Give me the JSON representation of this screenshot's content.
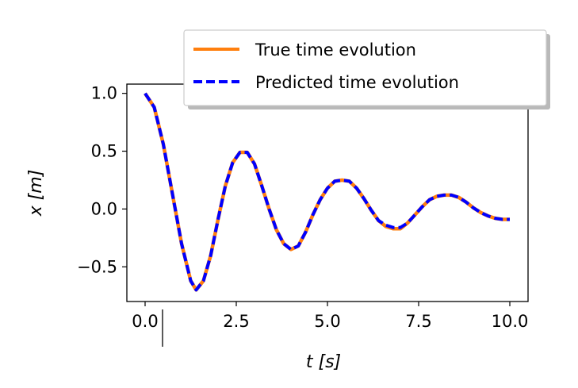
{
  "chart_data": {
    "type": "line",
    "title": "",
    "xlabel": "t [s]",
    "ylabel": "x [m]",
    "xlim": [
      -0.5,
      10.5
    ],
    "ylim": [
      -0.8,
      1.08
    ],
    "xticks": [
      0.0,
      2.5,
      5.0,
      7.5,
      10.0
    ],
    "xtick_labels": [
      "0.0",
      "2.5",
      "5.0",
      "7.5",
      "10.0"
    ],
    "yticks": [
      1.0,
      0.5,
      0.0,
      -0.5
    ],
    "ytick_labels": [
      "1.0",
      "0.5",
      "0.0",
      "−0.5"
    ],
    "grid": false,
    "legend_position": "top-right",
    "x": [
      0.0,
      0.25,
      0.5,
      0.75,
      1.0,
      1.25,
      1.4,
      1.6,
      1.8,
      2.0,
      2.2,
      2.4,
      2.6,
      2.8,
      3.0,
      3.2,
      3.4,
      3.6,
      3.8,
      4.0,
      4.2,
      4.4,
      4.6,
      4.8,
      5.0,
      5.2,
      5.4,
      5.6,
      5.8,
      6.0,
      6.2,
      6.4,
      6.6,
      6.8,
      7.0,
      7.2,
      7.4,
      7.6,
      7.8,
      8.0,
      8.2,
      8.4,
      8.6,
      8.8,
      9.0,
      9.2,
      9.4,
      9.6,
      9.8,
      10.0
    ],
    "series": [
      {
        "name": "True time evolution",
        "color": "#ff7f0e",
        "style": "solid",
        "values": [
          1.0,
          0.88,
          0.56,
          0.13,
          -0.3,
          -0.62,
          -0.7,
          -0.62,
          -0.4,
          -0.09,
          0.2,
          0.4,
          0.49,
          0.49,
          0.39,
          0.2,
          0.0,
          -0.18,
          -0.3,
          -0.35,
          -0.32,
          -0.2,
          -0.05,
          0.08,
          0.18,
          0.24,
          0.25,
          0.24,
          0.18,
          0.09,
          -0.01,
          -0.1,
          -0.15,
          -0.17,
          -0.17,
          -0.12,
          -0.05,
          0.02,
          0.08,
          0.11,
          0.12,
          0.12,
          0.1,
          0.06,
          0.01,
          -0.03,
          -0.06,
          -0.08,
          -0.09,
          -0.09
        ]
      },
      {
        "name": "Predicted time evolution",
        "color": "#0000ff",
        "style": "dashed",
        "values": [
          1.0,
          0.88,
          0.56,
          0.13,
          -0.3,
          -0.62,
          -0.7,
          -0.62,
          -0.4,
          -0.09,
          0.2,
          0.4,
          0.49,
          0.49,
          0.39,
          0.2,
          0.0,
          -0.18,
          -0.3,
          -0.35,
          -0.32,
          -0.2,
          -0.05,
          0.08,
          0.18,
          0.24,
          0.25,
          0.24,
          0.18,
          0.09,
          -0.01,
          -0.1,
          -0.14,
          -0.16,
          -0.16,
          -0.12,
          -0.05,
          0.02,
          0.08,
          0.11,
          0.12,
          0.12,
          0.1,
          0.06,
          0.01,
          -0.03,
          -0.06,
          -0.08,
          -0.09,
          -0.09
        ]
      }
    ]
  }
}
